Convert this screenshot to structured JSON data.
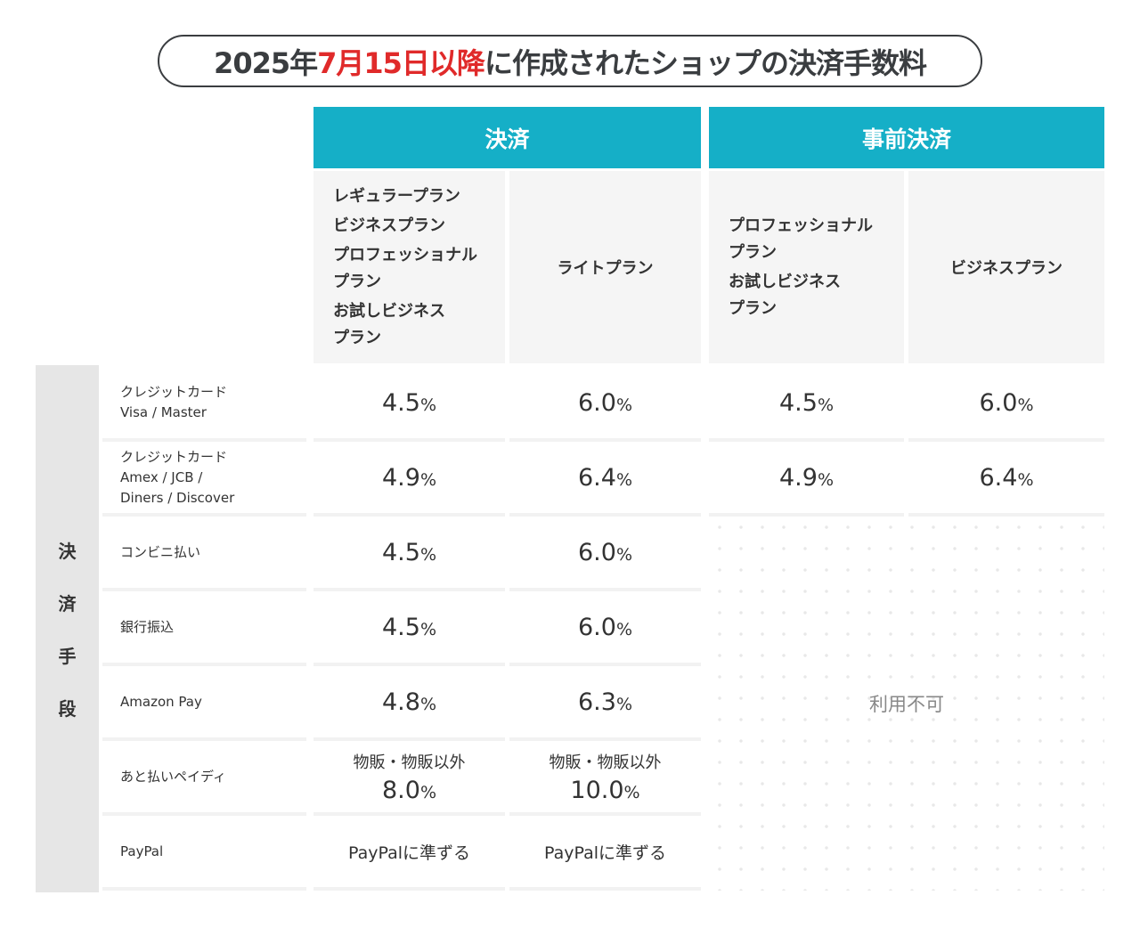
{
  "title": {
    "prefix": "2025年",
    "highlight": "7月15日以降",
    "suffix": "に作成されたショップの決済手数料"
  },
  "headers": {
    "payment": "決済",
    "prepayment": "事前決済"
  },
  "plans": {
    "col1": [
      "レギュラープラン",
      "ビジネスプラン",
      "プロフェッショナル\nプラン",
      "お試しビジネス\nプラン"
    ],
    "col2": "ライトプラン",
    "col3": [
      "プロフェッショナル\nプラン",
      "お試しビジネス\nプラン"
    ],
    "col4": "ビジネスプラン"
  },
  "side_label": [
    "決",
    "済",
    "手",
    "段"
  ],
  "rows": [
    {
      "method": "クレジットカード\nVisa / Master",
      "c1": "4.5",
      "c2": "6.0",
      "c3": "4.5",
      "c4": "6.0"
    },
    {
      "method": "クレジットカード\nAmex / JCB /\nDiners / Discover",
      "c1": "4.9",
      "c2": "6.4",
      "c3": "4.9",
      "c4": "6.4"
    },
    {
      "method": "コンビニ払い",
      "c1": "4.5",
      "c2": "6.0"
    },
    {
      "method": "銀行振込",
      "c1": "4.5",
      "c2": "6.0"
    },
    {
      "method": "Amazon Pay",
      "c1": "4.8",
      "c2": "6.3"
    },
    {
      "method": "あと払いペイディ",
      "note": "物販・物販以外",
      "c1": "8.0",
      "c2": "10.0"
    },
    {
      "method": "PayPal",
      "c1": "PayPalに準ずる",
      "c2": "PayPalに準ずる"
    }
  ],
  "percent": "%",
  "unavailable": "利用不可",
  "colors": {
    "header": "#15afc7",
    "highlight": "#e02a2a"
  }
}
